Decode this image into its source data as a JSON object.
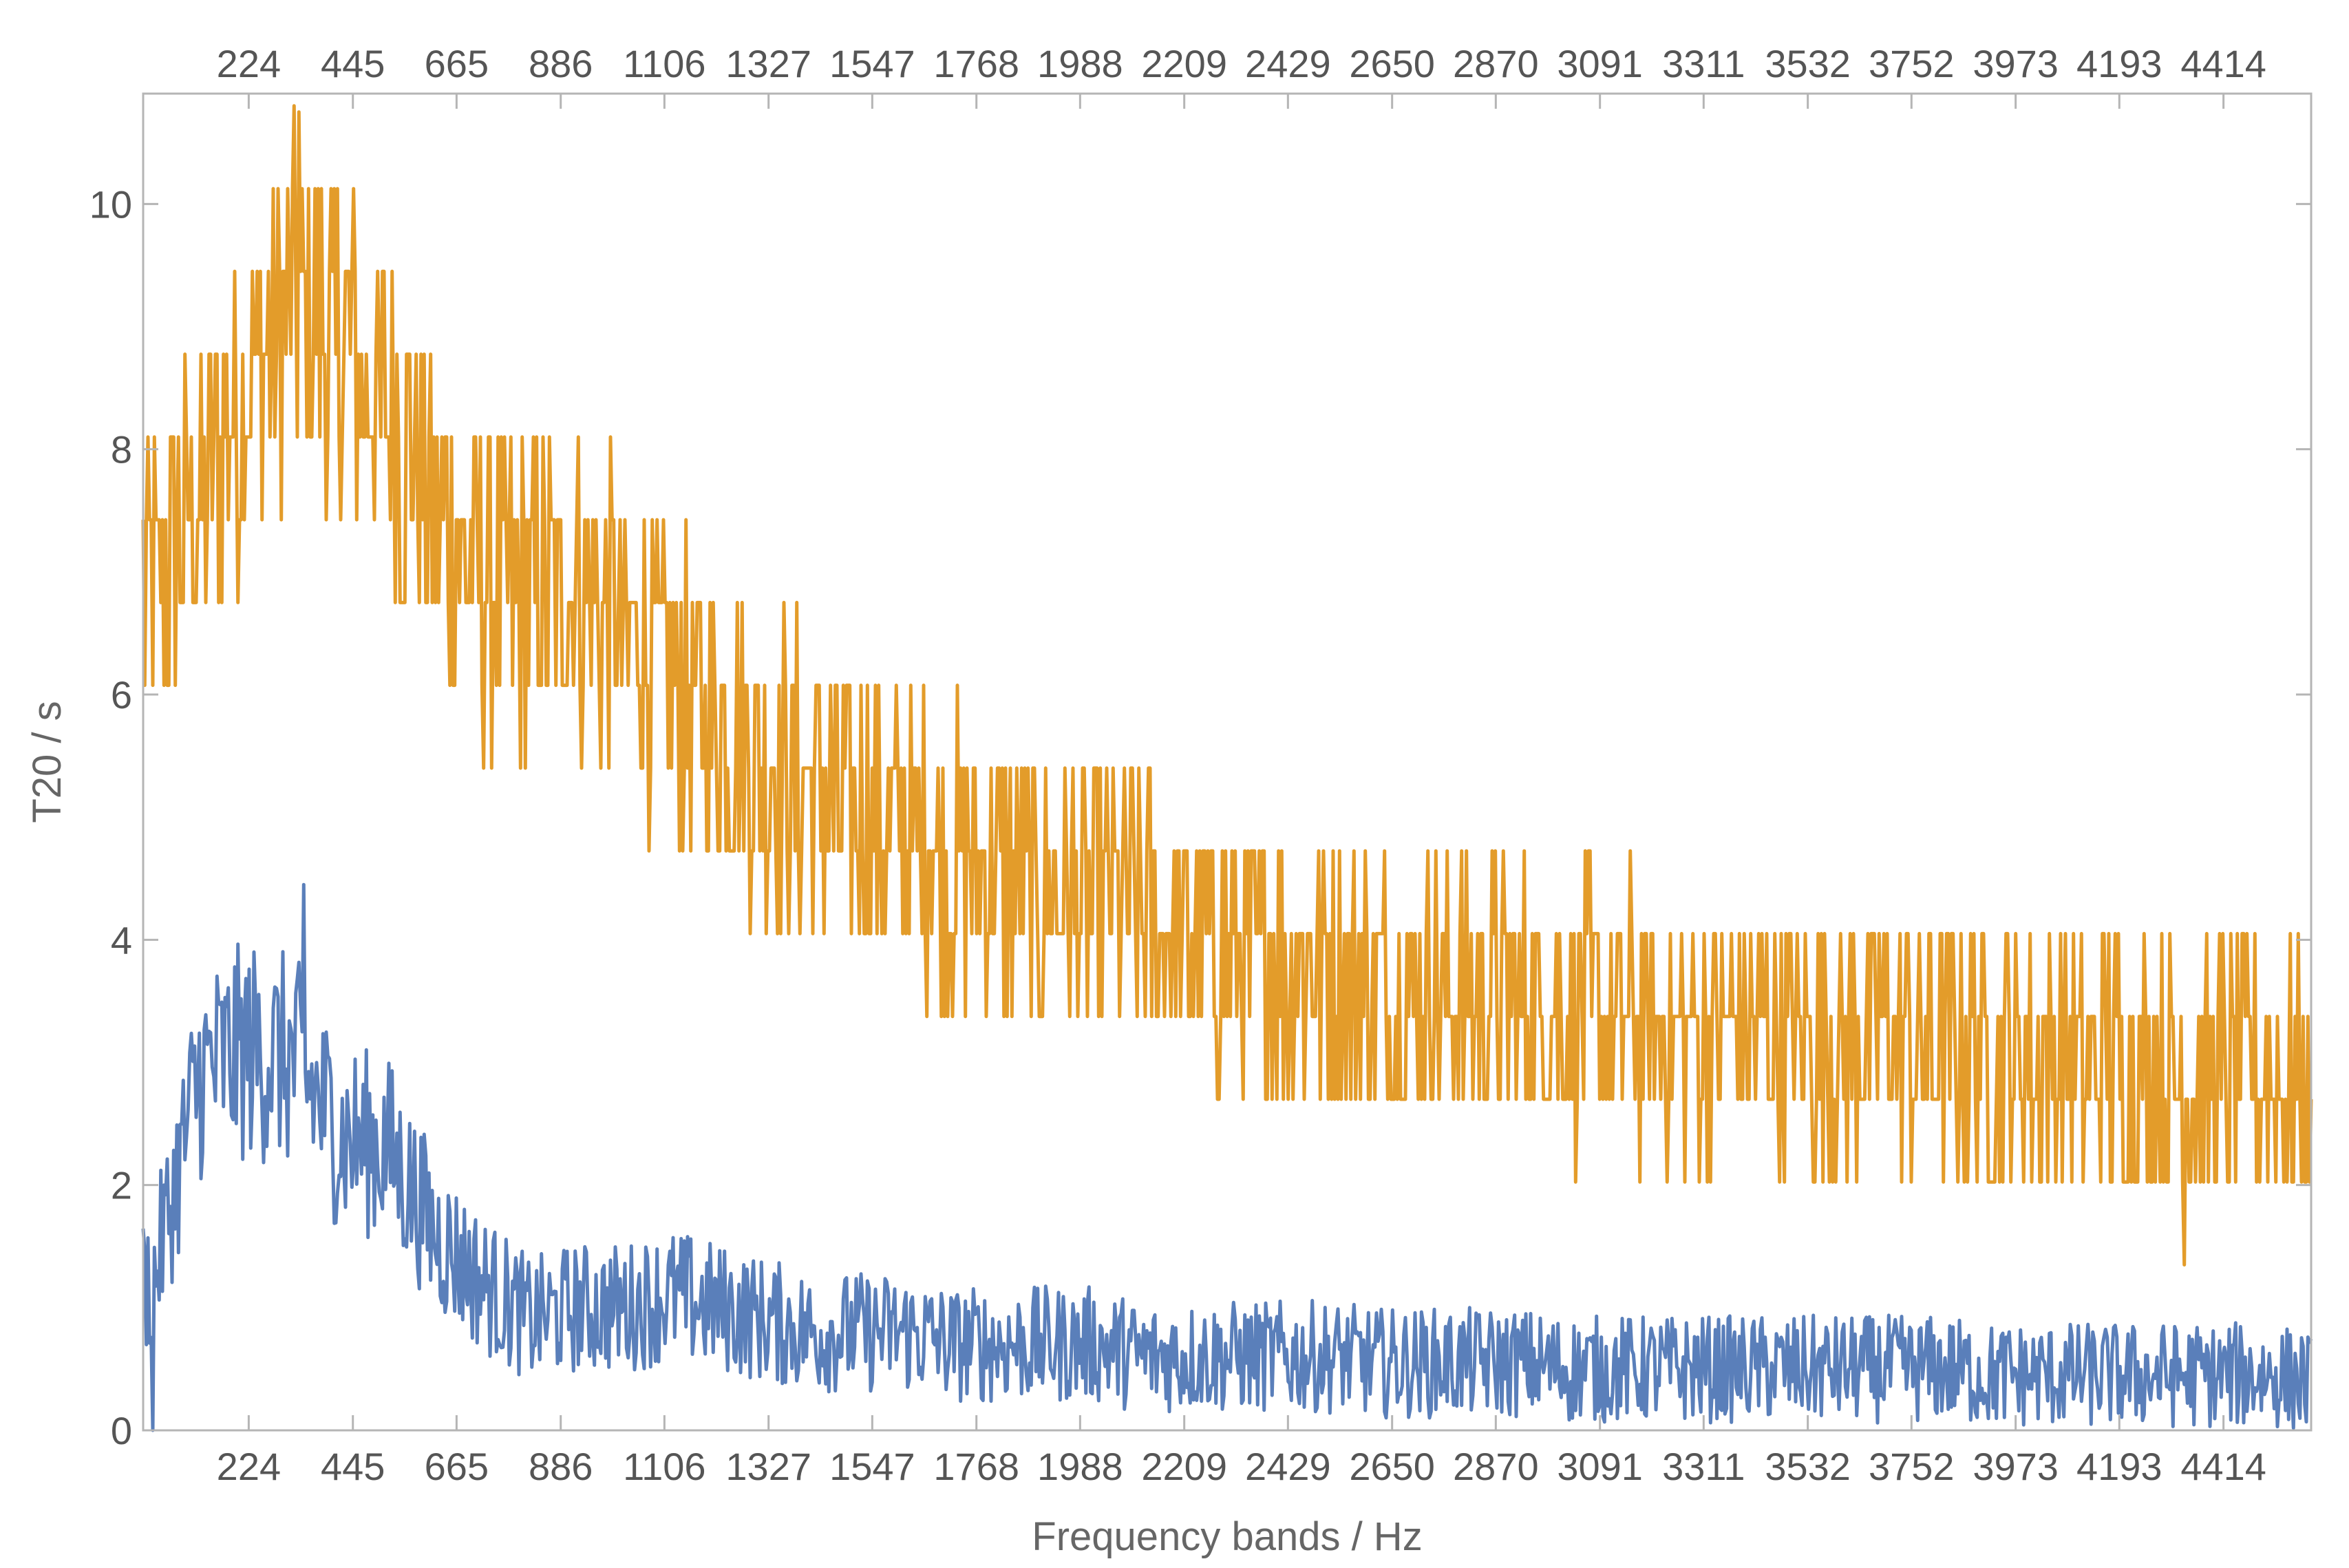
{
  "chart_data": {
    "type": "line",
    "title": "",
    "xlabel": "Frequency bands / Hz",
    "ylabel": "T20 / s",
    "xlim": [
      0,
      4600
    ],
    "ylim": [
      0,
      10.9
    ],
    "x_ticks": [
      224,
      445,
      665,
      886,
      1106,
      1327,
      1547,
      1768,
      1988,
      2209,
      2429,
      2650,
      2870,
      3091,
      3311,
      3532,
      3752,
      3973,
      4193,
      4414
    ],
    "x_tick_labels": [
      "224",
      "445",
      "665",
      "886",
      "1106",
      "1327",
      "1547",
      "1768",
      "1988",
      "2209",
      "2429",
      "2650",
      "2870",
      "3091",
      "3311",
      "3532",
      "3752",
      "3973",
      "4193",
      "4414"
    ],
    "y_ticks": [
      0,
      2,
      4,
      6,
      8,
      10
    ],
    "y_tick_labels": [
      "0",
      "2",
      "4",
      "6",
      "8",
      "10"
    ],
    "grid": false,
    "frame_ticks_on_top": true,
    "series": [
      {
        "color": "#e39c2a",
        "x": [
          20,
          120,
          220,
          320,
          420,
          520,
          620,
          720,
          820,
          920,
          1020,
          1120,
          1220,
          1320,
          1420,
          1520,
          1620,
          1720,
          1820,
          1920,
          2020,
          2120,
          2220,
          2320,
          2420,
          2520,
          2620,
          2720,
          2820,
          2920,
          3020,
          3120,
          3220,
          3320,
          3420,
          3520,
          3620,
          3720,
          3820,
          3920,
          4020,
          4120,
          4220,
          4320,
          4420,
          4520,
          4580
        ],
        "values": [
          6.8,
          7.6,
          8.6,
          9.2,
          8.8,
          8.3,
          7.6,
          6.8,
          6.8,
          6.9,
          6.5,
          6.1,
          5.7,
          5.5,
          5.2,
          5.0,
          4.9,
          4.7,
          4.5,
          4.4,
          4.3,
          4.2,
          4.0,
          3.9,
          3.8,
          3.7,
          3.6,
          3.6,
          3.5,
          3.5,
          3.4,
          3.4,
          3.3,
          3.3,
          3.3,
          3.2,
          3.2,
          3.2,
          3.1,
          3.1,
          3.0,
          3.0,
          3.0,
          2.9,
          2.9,
          2.8,
          2.7
        ],
        "extremes": {
          "max": 10.75,
          "max_x": 330,
          "min": 1.35,
          "min_x": 4330
        }
      },
      {
        "color": "#5a7fba",
        "x": [
          20,
          120,
          220,
          320,
          420,
          520,
          620,
          720,
          820,
          920,
          1020,
          1120,
          1220,
          1320,
          1420,
          1520,
          1620,
          1720,
          1820,
          1920,
          2020,
          2120,
          2220,
          2320,
          2420,
          2520,
          2620,
          2720,
          2820,
          2920,
          3020,
          3120,
          3220,
          3320,
          3420,
          3520,
          3620,
          3720,
          3820,
          3920,
          4020,
          4120,
          4220,
          4320,
          4420,
          4520,
          4580
        ],
        "values": [
          1.2,
          2.9,
          3.1,
          3.0,
          2.4,
          2.3,
          1.6,
          1.2,
          0.9,
          1.0,
          1.0,
          1.1,
          1.0,
          0.9,
          0.8,
          0.8,
          0.8,
          0.7,
          0.7,
          0.7,
          0.7,
          0.6,
          0.6,
          0.6,
          0.6,
          0.6,
          0.55,
          0.55,
          0.55,
          0.55,
          0.5,
          0.5,
          0.5,
          0.5,
          0.5,
          0.5,
          0.5,
          0.5,
          0.5,
          0.45,
          0.45,
          0.45,
          0.45,
          0.45,
          0.45,
          0.45,
          0.4
        ],
        "extremes": {
          "max": 4.45,
          "max_x": 340,
          "min": 0.0,
          "min_x": 20
        }
      }
    ]
  }
}
